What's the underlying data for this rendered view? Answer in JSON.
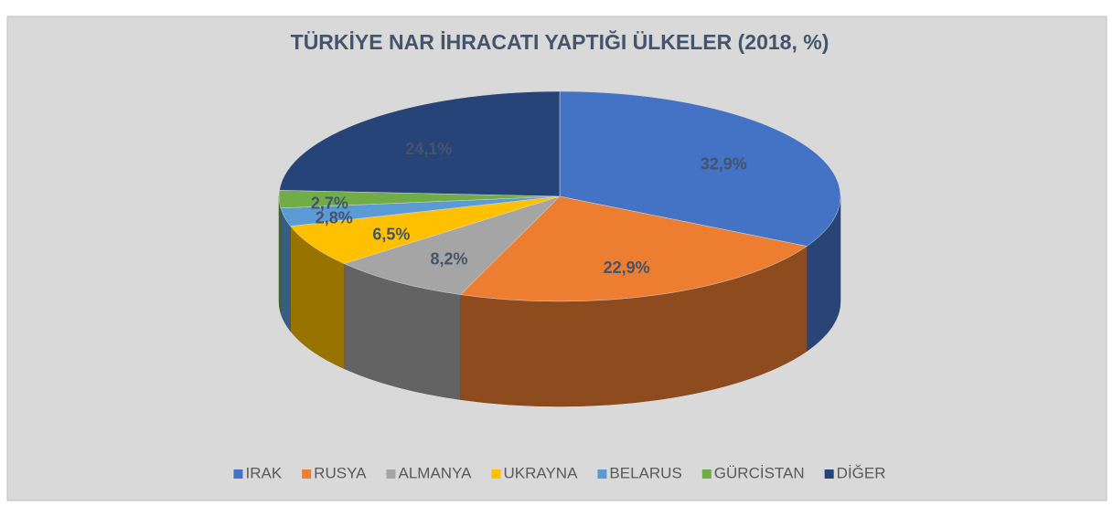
{
  "chart_data": {
    "type": "pie3d",
    "title": "TÜRKİYE NAR İHRACATI YAPTIĞI ÜLKELER (2018, %)",
    "categories": [
      "IRAK",
      "RUSYA",
      "ALMANYA",
      "UKRAYNA",
      "BELARUS",
      "GÜRCİSTAN",
      "DİĞER"
    ],
    "values": [
      32.9,
      22.9,
      8.2,
      6.5,
      2.8,
      2.7,
      24.1
    ],
    "value_labels": [
      "32,9%",
      "22,9%",
      "8,2%",
      "6,5%",
      "2,8%",
      "2,7%",
      "24,1%"
    ],
    "colors": [
      "#4472c4",
      "#ed7d31",
      "#a5a5a5",
      "#ffc000",
      "#5b9bd5",
      "#70ad47",
      "#264478"
    ],
    "legend": "bottom"
  }
}
